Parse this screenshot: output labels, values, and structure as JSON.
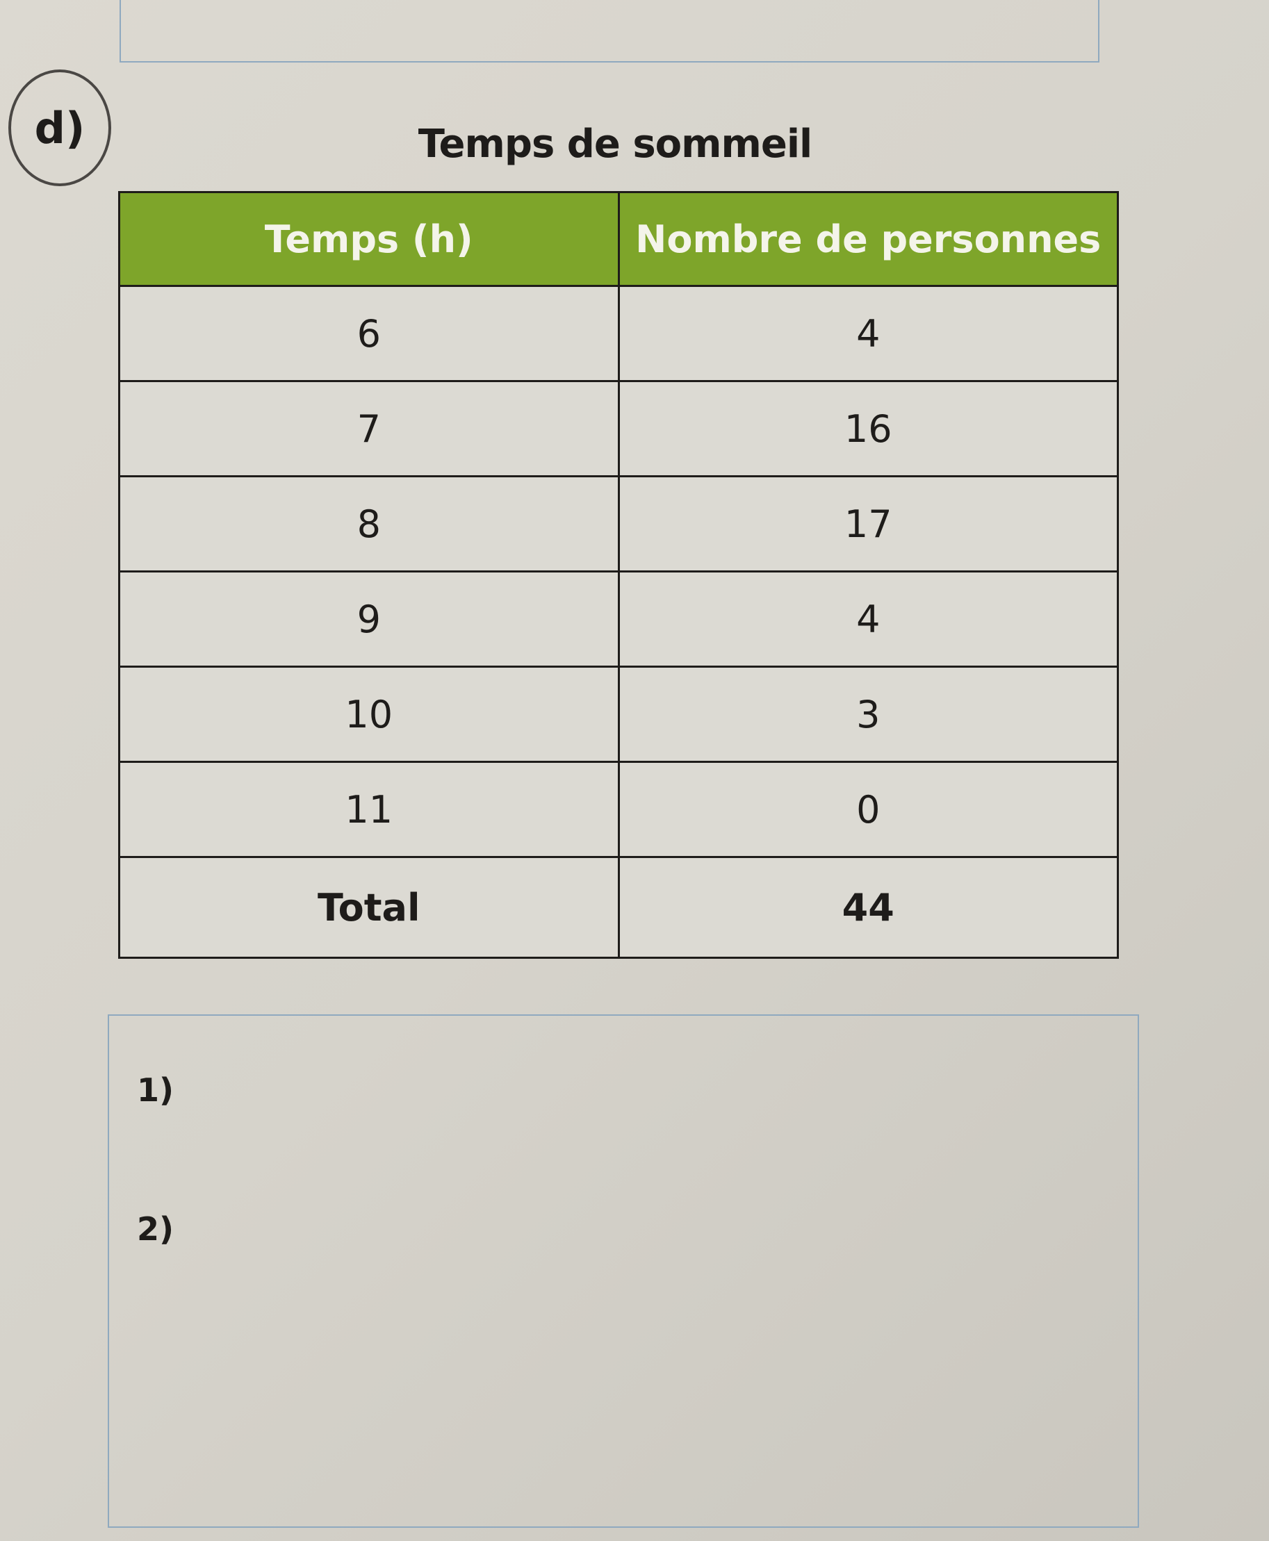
{
  "exercise_label": "d)",
  "table": {
    "title": "Temps de sommeil",
    "header_color": "#7ea52a",
    "columns": [
      "Temps (h)",
      "Nombre de personnes"
    ],
    "rows": [
      [
        "6",
        "4"
      ],
      [
        "7",
        "16"
      ],
      [
        "8",
        "17"
      ],
      [
        "9",
        "4"
      ],
      [
        "10",
        "3"
      ],
      [
        "11",
        "0"
      ]
    ],
    "total": [
      "Total",
      "44"
    ]
  },
  "answers": {
    "q1": "1)",
    "q2": "2)"
  }
}
